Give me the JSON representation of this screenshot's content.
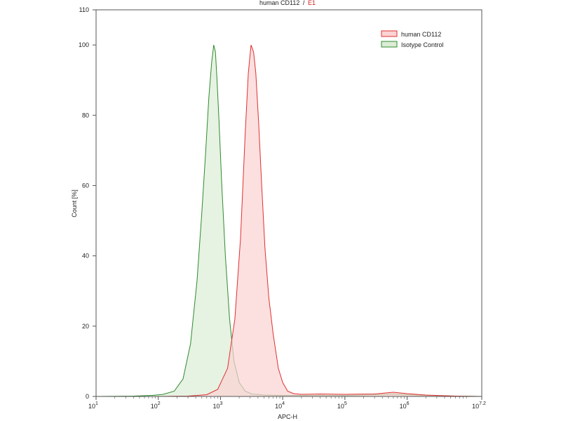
{
  "chart_data": {
    "type": "area",
    "title": "human CD112",
    "title_suffix": "E1",
    "title_separator": "/",
    "xlabel": "APC-H",
    "ylabel": "Count [%]",
    "x_scale": "log",
    "xlim": [
      10,
      15848931.9
    ],
    "ylim": [
      0,
      110
    ],
    "x_ticks": [
      {
        "base": "10",
        "exp": "1"
      },
      {
        "base": "10",
        "exp": "2"
      },
      {
        "base": "10",
        "exp": "3"
      },
      {
        "base": "10",
        "exp": "4"
      },
      {
        "base": "10",
        "exp": "5"
      },
      {
        "base": "10",
        "exp": "6"
      },
      {
        "base": "10",
        "exp": "7.2"
      }
    ],
    "y_ticks": [
      "0",
      "20",
      "40",
      "60",
      "80",
      "100",
      "110"
    ],
    "y_tick_values": [
      0,
      20,
      40,
      60,
      80,
      100,
      110
    ],
    "grid": false,
    "legend_position": "top-right",
    "series": [
      {
        "name": "human CD112",
        "line_color": "#e03030",
        "fill_color": "#fbd3d3",
        "x": [
          10,
          100,
          300,
          600,
          900,
          1300,
          1700,
          2100,
          2500,
          2800,
          3100,
          3400,
          3700,
          4100,
          4600,
          5200,
          6000,
          7000,
          8500,
          10000,
          12000,
          15000,
          20000,
          40000,
          100000,
          300000,
          600000,
          1000000,
          2000000,
          6000000,
          15848931.9
        ],
        "y": [
          0,
          0,
          0.1,
          0.5,
          2,
          8,
          22,
          45,
          75,
          92,
          100,
          98,
          92,
          78,
          60,
          42,
          28,
          18,
          8,
          4,
          1.5,
          0.8,
          0.6,
          0.7,
          0.6,
          0.7,
          1.2,
          0.8,
          0.4,
          0.1,
          0
        ]
      },
      {
        "name": "Isotype Control",
        "line_color": "#2e8b2e",
        "fill_color": "#dcecd6",
        "x": [
          10,
          40,
          80,
          120,
          180,
          250,
          330,
          420,
          500,
          580,
          650,
          720,
          780,
          830,
          880,
          950,
          1050,
          1200,
          1400,
          1650,
          2000,
          2500,
          3200,
          5000,
          10000,
          100000,
          300000,
          600000,
          1000000,
          3000000,
          15848931.9
        ],
        "y": [
          0,
          0.1,
          0.3,
          0.6,
          1.5,
          5,
          15,
          33,
          52,
          70,
          85,
          95,
          100,
          98,
          90,
          78,
          60,
          40,
          22,
          10,
          4,
          1.5,
          0.7,
          0.4,
          0.3,
          0.3,
          0.5,
          0.7,
          0.5,
          0.2,
          0
        ]
      }
    ]
  }
}
